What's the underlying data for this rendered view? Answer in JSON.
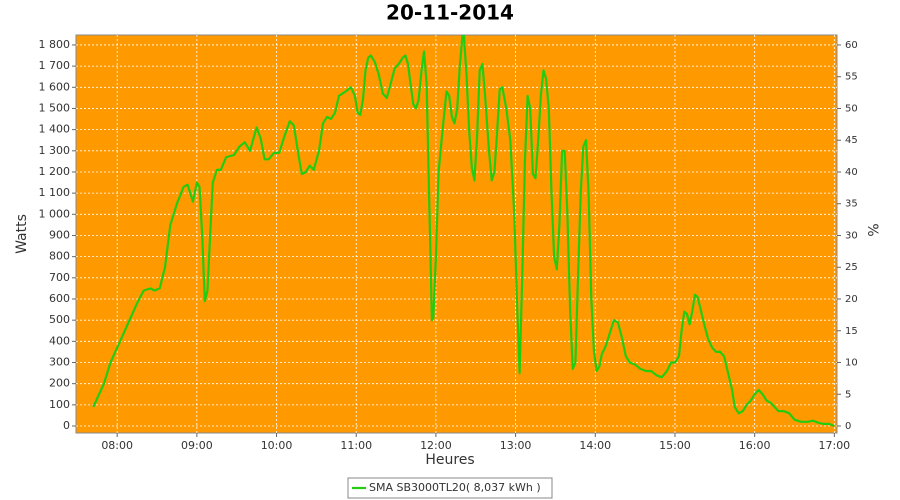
{
  "chart_data": {
    "type": "line",
    "title": "20-11-2014",
    "xlabel": "Heures",
    "ylabel": "Watts",
    "y2label": "%",
    "plot_color": "#ff9900",
    "grid": true,
    "legend": "bottom",
    "x": [
      462,
      470,
      475,
      480,
      485,
      490,
      495,
      500,
      505,
      508,
      512,
      516,
      520,
      525,
      530,
      533,
      537,
      540,
      542,
      544,
      546,
      548,
      550,
      552,
      555,
      558,
      562,
      568,
      572,
      576,
      580,
      585,
      588,
      591,
      594,
      598,
      602,
      606,
      610,
      613,
      616,
      619,
      622,
      625,
      628,
      632,
      635,
      638,
      641,
      644,
      647,
      652,
      656,
      659,
      661,
      663,
      665,
      667,
      669,
      671,
      674,
      677,
      680,
      683,
      686,
      689,
      692,
      695,
      697,
      699,
      701,
      703,
      705,
      707,
      709,
      711,
      713,
      715,
      717,
      718,
      720,
      722,
      725,
      728,
      730,
      732,
      734,
      736,
      738,
      740,
      741,
      743,
      745,
      747,
      749,
      751,
      753,
      755,
      757,
      760,
      762,
      764,
      766,
      768,
      770,
      773,
      776,
      779,
      781,
      783,
      785,
      787,
      789,
      791,
      793,
      795,
      797,
      799,
      801,
      803,
      805,
      807,
      809,
      811,
      813,
      815,
      817,
      819,
      821,
      823,
      825,
      827,
      829,
      831,
      833,
      835,
      837,
      839,
      841,
      843,
      845,
      848,
      851,
      854,
      857,
      860,
      863,
      866,
      870,
      874,
      878,
      882,
      886,
      890,
      894,
      897,
      900,
      903,
      905,
      907,
      909,
      911,
      913,
      915,
      917,
      919,
      922,
      925,
      928,
      931,
      934,
      937,
      940,
      943,
      945,
      948,
      951,
      954,
      957,
      960,
      963,
      966,
      969,
      972,
      975,
      978,
      982,
      986,
      990,
      995,
      1000,
      1004,
      1008,
      1012,
      1016,
      1020
    ],
    "series": [
      {
        "name": "SMA SB3000TL20( 8,037 kWh )",
        "color": "#22cc11",
        "values": [
          90,
          200,
          300,
          370,
          440,
          510,
          580,
          640,
          650,
          640,
          650,
          750,
          950,
          1050,
          1130,
          1140,
          1060,
          1150,
          1130,
          900,
          590,
          640,
          900,
          1150,
          1210,
          1210,
          1270,
          1280,
          1320,
          1340,
          1300,
          1410,
          1360,
          1260,
          1260,
          1290,
          1290,
          1370,
          1440,
          1420,
          1300,
          1190,
          1200,
          1230,
          1210,
          1300,
          1430,
          1460,
          1450,
          1480,
          1560,
          1580,
          1600,
          1560,
          1480,
          1470,
          1540,
          1680,
          1740,
          1750,
          1720,
          1660,
          1570,
          1550,
          1620,
          1690,
          1710,
          1740,
          1750,
          1710,
          1610,
          1520,
          1500,
          1540,
          1670,
          1770,
          1620,
          1050,
          500,
          510,
          800,
          1200,
          1400,
          1580,
          1560,
          1460,
          1430,
          1500,
          1700,
          1850,
          1850,
          1660,
          1400,
          1220,
          1160,
          1370,
          1680,
          1710,
          1560,
          1300,
          1160,
          1200,
          1380,
          1590,
          1600,
          1500,
          1350,
          1000,
          600,
          250,
          700,
          1250,
          1560,
          1500,
          1190,
          1170,
          1350,
          1560,
          1680,
          1640,
          1500,
          1100,
          800,
          740,
          950,
          1300,
          1300,
          1000,
          550,
          270,
          300,
          700,
          1100,
          1320,
          1350,
          1100,
          600,
          350,
          260,
          280,
          340,
          380,
          440,
          500,
          490,
          420,
          330,
          300,
          290,
          270,
          260,
          260,
          240,
          230,
          260,
          300,
          300,
          330,
          450,
          540,
          530,
          480,
          540,
          620,
          610,
          560,
          480,
          410,
          370,
          350,
          350,
          330,
          250,
          170,
          90,
          60,
          70,
          100,
          120,
          150,
          170,
          150,
          120,
          110,
          90,
          70,
          70,
          60,
          30,
          20,
          20,
          25,
          15,
          10,
          10,
          0
        ]
      }
    ],
    "xlim": [
      449,
      1022
    ],
    "xticks": [
      {
        "value": 480,
        "label": "08:00"
      },
      {
        "value": 540,
        "label": "09:00"
      },
      {
        "value": 600,
        "label": "10:00"
      },
      {
        "value": 660,
        "label": "11:00"
      },
      {
        "value": 720,
        "label": "12:00"
      },
      {
        "value": 780,
        "label": "13:00"
      },
      {
        "value": 840,
        "label": "14:00"
      },
      {
        "value": 900,
        "label": "15:00"
      },
      {
        "value": 960,
        "label": "16:00"
      },
      {
        "value": 1020,
        "label": "17:00"
      }
    ],
    "ylim": [
      -33,
      1847
    ],
    "yticks": [
      0,
      100,
      200,
      300,
      400,
      500,
      600,
      700,
      800,
      900,
      {
        "value": 1000,
        "label": "1 000"
      },
      {
        "value": 1100,
        "label": "1 100"
      },
      {
        "value": 1200,
        "label": "1 200"
      },
      {
        "value": 1300,
        "label": "1 300"
      },
      {
        "value": 1400,
        "label": "1 400"
      },
      {
        "value": 1500,
        "label": "1 500"
      },
      {
        "value": 1600,
        "label": "1 600"
      },
      {
        "value": 1700,
        "label": "1 700"
      },
      {
        "value": 1800,
        "label": "1 800"
      }
    ],
    "y2lim": [
      -1.1,
      61.57
    ],
    "y2ticks": [
      0,
      5,
      10,
      15,
      20,
      25,
      30,
      35,
      40,
      45,
      50,
      55,
      60
    ]
  }
}
